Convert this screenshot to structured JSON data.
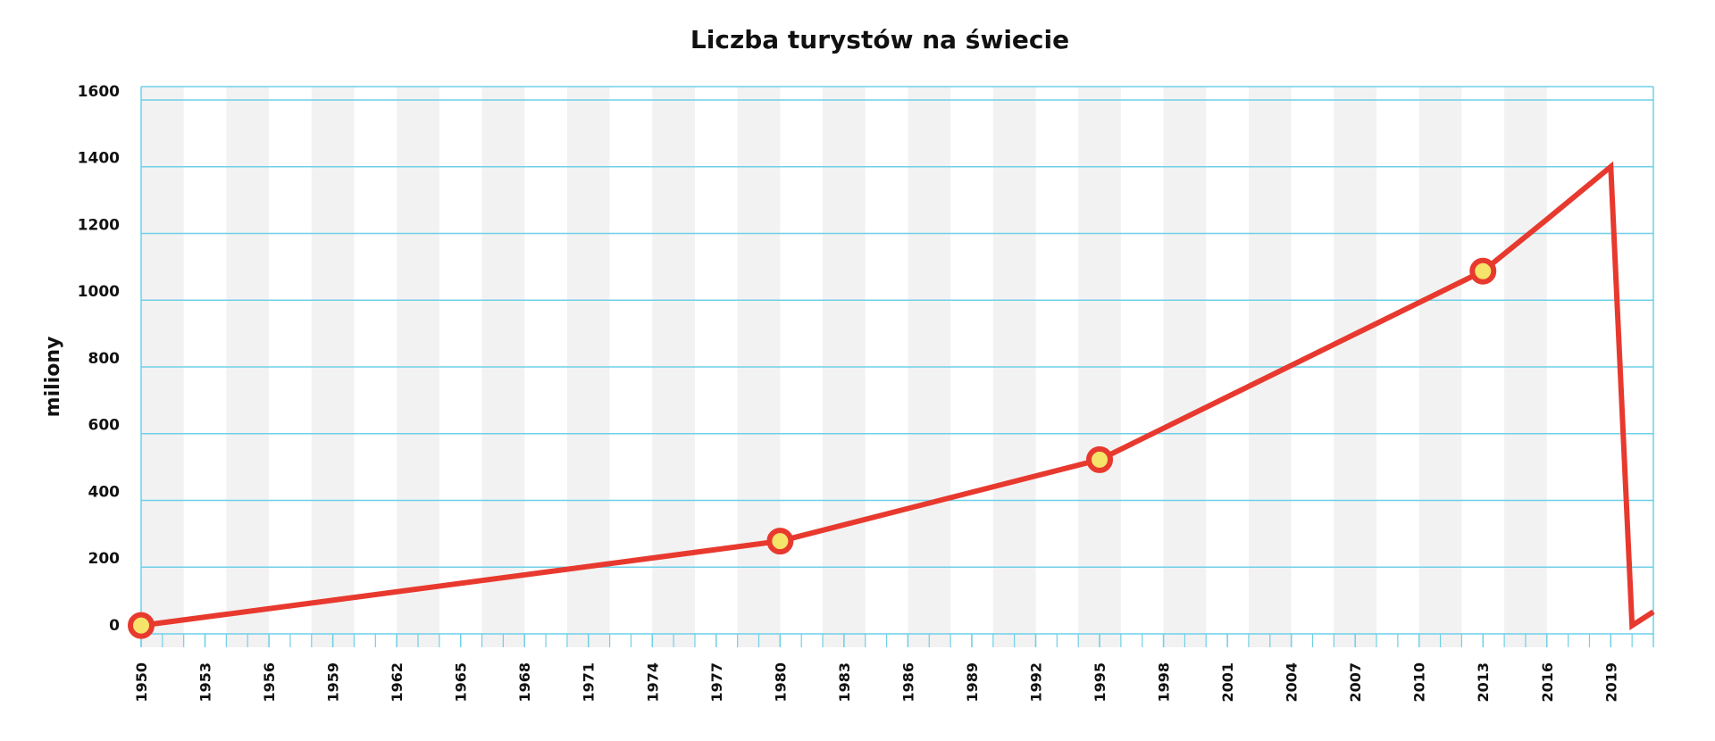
{
  "chart_data": {
    "type": "line",
    "title": "Liczba turystów na świecie",
    "y_label": "miliony",
    "x": [
      1950,
      1980,
      1995,
      2013,
      2016,
      2019,
      2020,
      2021
    ],
    "series": [
      {
        "color": "#e8392f",
        "values": [
          25,
          278,
          522,
          1087,
          1242,
          1400,
          25,
          66
        ],
        "marked": [
          true,
          true,
          true,
          true,
          false,
          false,
          false,
          false
        ]
      }
    ],
    "xlim": [
      1950,
      2021
    ],
    "xticks": [
      1950,
      1953,
      1956,
      1959,
      1962,
      1965,
      1968,
      1971,
      1974,
      1977,
      1980,
      1983,
      1986,
      1989,
      1992,
      1995,
      1998,
      2001,
      2004,
      2007,
      2010,
      2013,
      2016,
      2019
    ],
    "ylim": [
      0,
      1640
    ],
    "yticks": [
      0,
      200,
      400,
      600,
      800,
      1000,
      1200,
      1400,
      1600
    ],
    "grid": true,
    "grid_color": "#6fd0e8",
    "marker_fill": "#f5e36a"
  }
}
